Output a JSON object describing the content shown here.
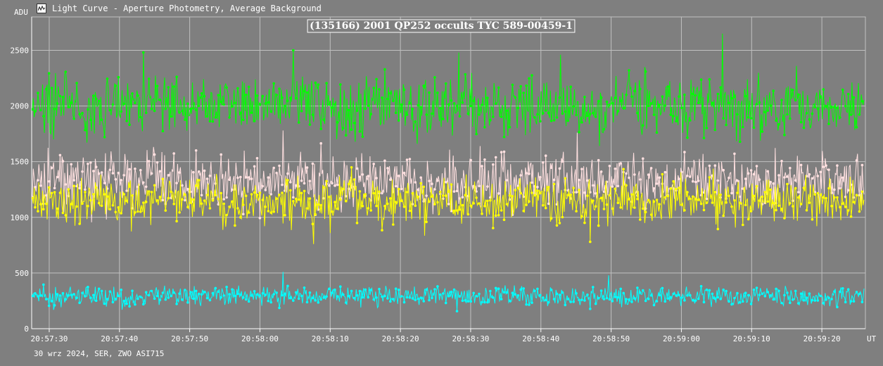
{
  "window": {
    "title": "Light Curve - Aperture Photometry, Average Background",
    "icon": "light-curve-app-icon"
  },
  "footer": {
    "text": "30 wrz 2024, SER, ZWO ASI715"
  },
  "colors": {
    "background": "#7f7f7f",
    "grid": "#c0c0c0",
    "axis": "#ffffff",
    "text": "#ffffff",
    "title_border": "#ffffff"
  },
  "chart_data": {
    "type": "line",
    "title": "(135166) 2001 QP252 occults TYC 589-00459-1",
    "ylabel": "ADU",
    "xlabel": "UT",
    "x_ticks": [
      "20:57:30",
      "20:57:40",
      "20:57:50",
      "20:58:00",
      "20:58:10",
      "20:58:20",
      "20:58:30",
      "20:58:40",
      "20:58:50",
      "20:59:00",
      "20:59:10",
      "20:59:20"
    ],
    "y_ticks": [
      0,
      500,
      1000,
      1500,
      2000,
      2500
    ],
    "ylim": [
      0,
      2800
    ],
    "xlim_seconds": [
      -2.5,
      116.2
    ],
    "grid": true,
    "series": [
      {
        "color": "#00ff00",
        "mean": 2000,
        "spread": 165,
        "peaks": [
          2480,
          2500,
          2480,
          2460,
          2650
        ]
      },
      {
        "color": "#ffe0e0",
        "mean": 1330,
        "spread": 150,
        "peaks": [
          1780,
          1760
        ]
      },
      {
        "color": "#ffff00",
        "mean": 1150,
        "spread": 130,
        "peaks": [
          760,
          780
        ]
      },
      {
        "color": "#00ffff",
        "mean": 290,
        "spread": 55,
        "peaks": [
          510,
          480
        ]
      }
    ]
  }
}
